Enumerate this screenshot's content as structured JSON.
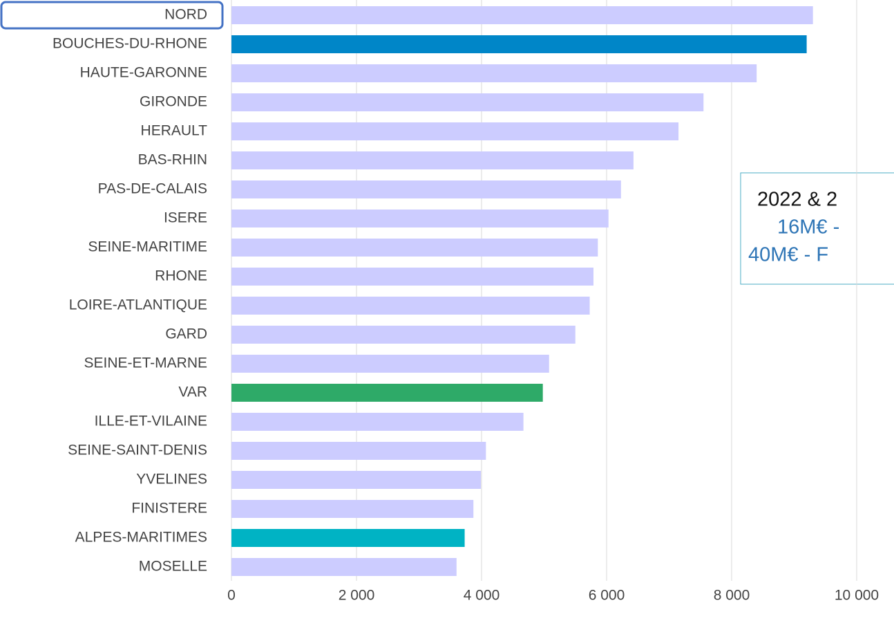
{
  "chart_data": {
    "type": "barh",
    "categories": [
      "NORD",
      "BOUCHES-DU-RHONE",
      "HAUTE-GARONNE",
      "GIRONDE",
      "HERAULT",
      "BAS-RHIN",
      "PAS-DE-CALAIS",
      "ISERE",
      "SEINE-MARITIME",
      "RHONE",
      "LOIRE-ATLANTIQUE",
      "GARD",
      "SEINE-ET-MARNE",
      "VAR",
      "ILLE-ET-VILAINE",
      "SEINE-SAINT-DENIS",
      "YVELINES",
      "FINISTERE",
      "ALPES-MARITIMES",
      "MOSELLE"
    ],
    "values": [
      9300,
      9200,
      8400,
      7550,
      7150,
      6430,
      6230,
      6030,
      5860,
      5790,
      5730,
      5500,
      5080,
      4980,
      4670,
      4070,
      3990,
      3870,
      3730,
      3600
    ],
    "colors": [
      "#ccccff",
      "#0086c8",
      "#ccccff",
      "#ccccff",
      "#ccccff",
      "#ccccff",
      "#ccccff",
      "#ccccff",
      "#ccccff",
      "#ccccff",
      "#ccccff",
      "#ccccff",
      "#ccccff",
      "#2eaa68",
      "#ccccff",
      "#ccccff",
      "#ccccff",
      "#ccccff",
      "#00b3c4",
      "#ccccff"
    ],
    "xlim": [
      0,
      10000
    ],
    "xticks": [
      0,
      {
        "value": 2000,
        "label": "2 000"
      },
      {
        "value": 4000,
        "label": "4 000"
      },
      {
        "value": 6000,
        "label": "6 000"
      },
      {
        "value": 8000,
        "label": "8 000"
      },
      {
        "value": 10000,
        "label": "10 000"
      }
    ],
    "grid": true,
    "annotation": {
      "lines": [
        "2022 & 2",
        "16M€ -",
        "40M€ - F"
      ],
      "colors": [
        "#111111",
        "#2e75b6",
        "#2e75b6"
      ]
    }
  }
}
